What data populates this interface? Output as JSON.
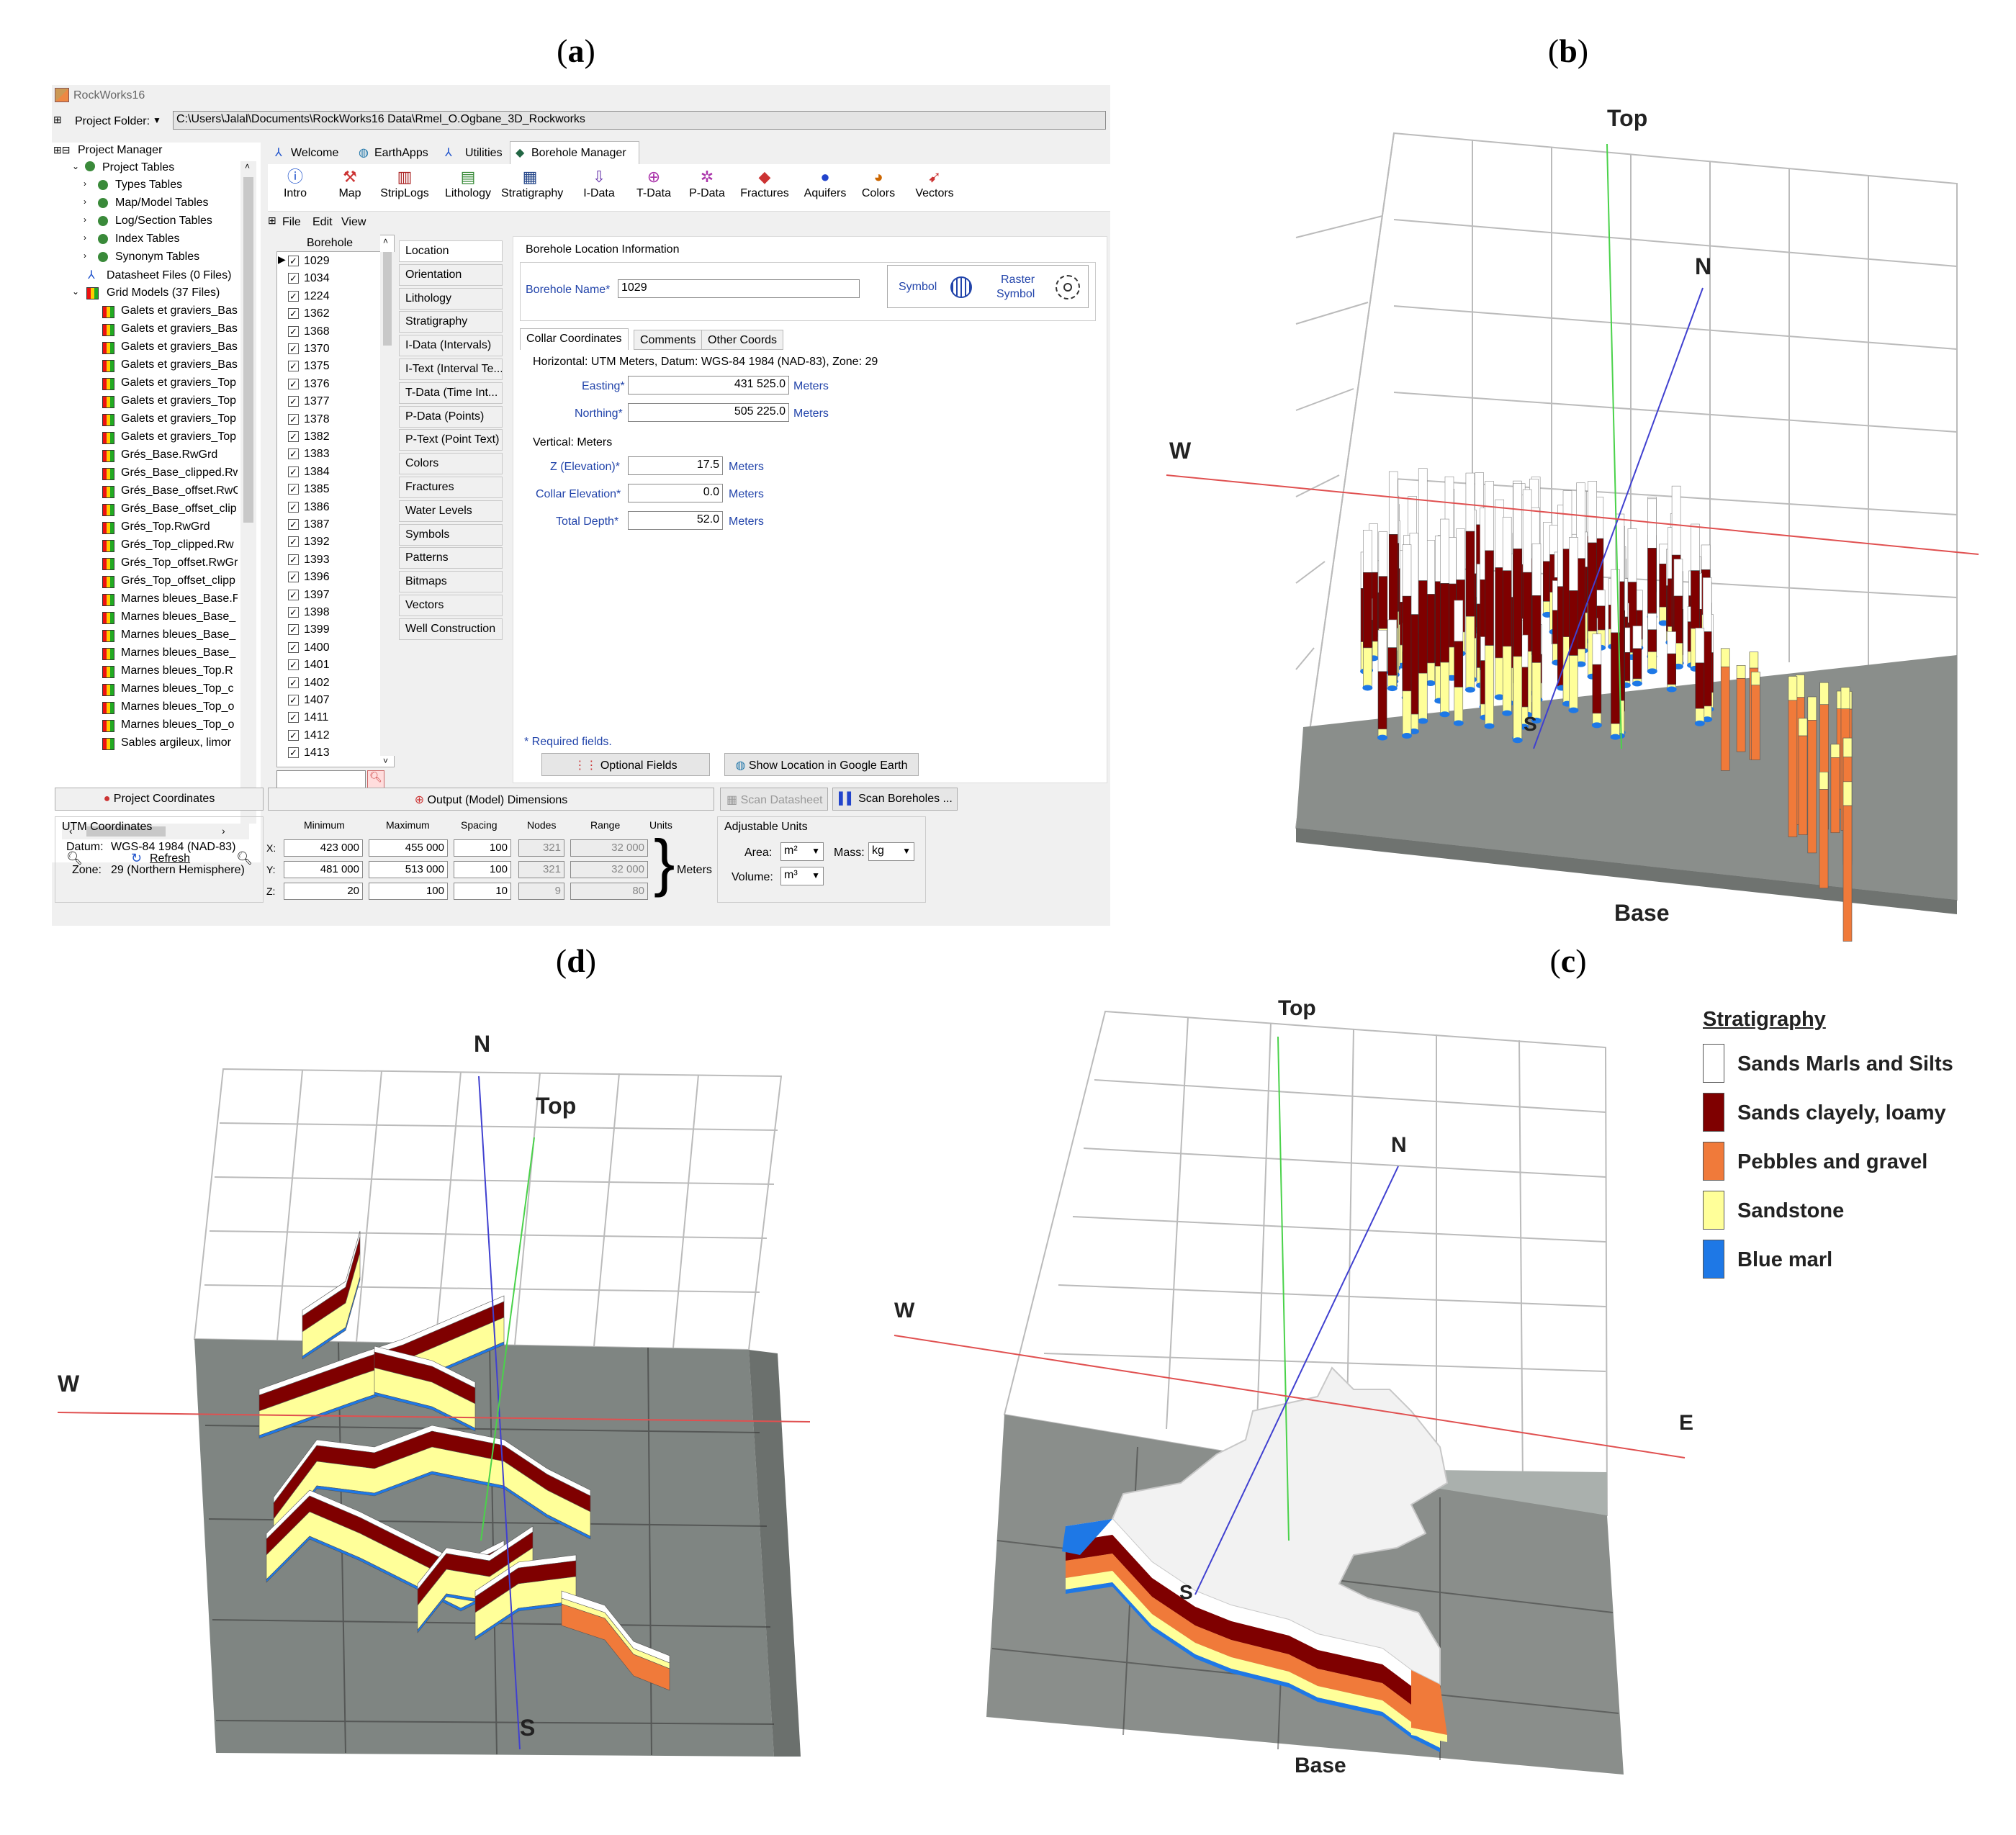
{
  "panel_labels": {
    "a": {
      "open": "(",
      "letter": "a",
      "close": ")"
    },
    "b": {
      "open": "(",
      "letter": "b",
      "close": ")"
    },
    "c": {
      "open": "(",
      "letter": "c",
      "close": ")"
    },
    "d": {
      "open": "(",
      "letter": "d",
      "close": ")"
    }
  },
  "app": {
    "title": "RockWorks16",
    "project_folder_label": "Project Folder:",
    "project_folder_path": "C:\\Users\\Jalal\\Documents\\RockWorks16 Data\\Rmel_O.Ogbane_3D_Rockworks",
    "tabs": [
      "Welcome",
      "EarthApps",
      "Utilities",
      "Borehole Manager"
    ],
    "toolbar": [
      "Intro",
      "Map",
      "StripLogs",
      "Lithology",
      "Stratigraphy",
      "I-Data",
      "T-Data",
      "P-Data",
      "Fractures",
      "Aquifers",
      "Colors",
      "Vectors"
    ],
    "menu": [
      "File",
      "Edit",
      "View"
    ],
    "tree": {
      "root": "Project Manager",
      "project_tables": "Project Tables",
      "tables": [
        "Types Tables",
        "Map/Model Tables",
        "Log/Section Tables",
        "Index Tables",
        "Synonym Tables"
      ],
      "datasheet_files": "Datasheet Files (0 Files)",
      "grid_models": "Grid Models (37 Files)",
      "grids": [
        "Galets et graviers_Bas",
        "Galets et graviers_Bas",
        "Galets et graviers_Bas",
        "Galets et graviers_Bas",
        "Galets et graviers_Top",
        "Galets et graviers_Top",
        "Galets et graviers_Top",
        "Galets et graviers_Top",
        "Grés_Base.RwGrd",
        "Grés_Base_clipped.Rw",
        "Grés_Base_offset.RwG",
        "Grés_Base_offset_clip",
        "Grés_Top.RwGrd",
        "Grés_Top_clipped.Rw",
        "Grés_Top_offset.RwGr",
        "Grés_Top_offset_clipp",
        "Marnes bleues_Base.F",
        "Marnes bleues_Base_",
        "Marnes bleues_Base_",
        "Marnes bleues_Base_",
        "Marnes bleues_Top.R",
        "Marnes bleues_Top_c",
        "Marnes bleues_Top_o",
        "Marnes bleues_Top_o",
        "Sables argileux, limor"
      ],
      "refresh": "Refresh"
    },
    "borehole_list": {
      "header": "Borehole",
      "items": [
        "1029",
        "1034",
        "1224",
        "1362",
        "1368",
        "1370",
        "1375",
        "1376",
        "1377",
        "1378",
        "1382",
        "1383",
        "1384",
        "1385",
        "1386",
        "1387",
        "1392",
        "1393",
        "1396",
        "1397",
        "1398",
        "1399",
        "1400",
        "1401",
        "1402",
        "1407",
        "1411",
        "1412",
        "1413"
      ]
    },
    "nav_buttons": [
      "Location",
      "Orientation",
      "Lithology",
      "Stratigraphy",
      "I-Data (Intervals)",
      "I-Text (Interval Te...",
      "T-Data (Time Int...",
      "P-Data (Points)",
      "P-Text (Point Text)",
      "Colors",
      "Fractures",
      "Water Levels",
      "Symbols",
      "Patterns",
      "Bitmaps",
      "Vectors",
      "Well Construction"
    ],
    "location": {
      "group_title": "Borehole Location Information",
      "name_label": "Borehole Name*",
      "name_value": "1029",
      "symbol_label": "Symbol",
      "raster_label_1": "Raster",
      "raster_label_2": "Symbol",
      "subtabs": [
        "Collar Coordinates",
        "Comments",
        "Other Coords"
      ],
      "horizontal_label": "Horizontal: UTM Meters, Datum: WGS-84 1984 (NAD-83), Zone: 29",
      "easting_label": "Easting*",
      "easting_value": "431 525.0",
      "northing_label": "Northing*",
      "northing_value": "505 225.0",
      "meters": "Meters",
      "vertical_label": "Vertical: Meters",
      "z_label": "Z (Elevation)*",
      "z_value": "17.5",
      "collar_label": "Collar Elevation*",
      "collar_value": "0.0",
      "depth_label": "Total Depth*",
      "depth_value": "52.0",
      "required": "* Required fields.",
      "optional_btn": "Optional Fields",
      "google_btn": "Show Location in Google Earth"
    },
    "bottom": {
      "project_coords_btn": "Project Coordinates",
      "output_dims_btn": "Output (Model) Dimensions",
      "scan_datasheet_btn": "Scan Datasheet",
      "scan_boreholes_btn": "Scan Boreholes ...",
      "utm_label": "UTM Coordinates",
      "datum_label": "Datum:",
      "datum_value": "WGS-84 1984 (NAD-83)",
      "zone_label": "Zone:",
      "zone_value": "29 (Northern Hemisphere)",
      "headers": [
        "Minimum",
        "Maximum",
        "Spacing",
        "Nodes",
        "Range",
        "Units"
      ],
      "rows": [
        {
          "axis": "X:",
          "min": "423 000",
          "max": "455 000",
          "spacing": "100",
          "nodes": "321",
          "range": "32 000"
        },
        {
          "axis": "Y:",
          "min": "481 000",
          "max": "513 000",
          "spacing": "100",
          "nodes": "321",
          "range": "32 000"
        },
        {
          "axis": "Z:",
          "min": "20",
          "max": "100",
          "spacing": "10",
          "nodes": "9",
          "range": "80"
        }
      ],
      "units_value": "Meters",
      "adjustable_units": "Adjustable Units",
      "area_label": "Area:",
      "area_value": "m²",
      "mass_label": "Mass:",
      "mass_value": "kg",
      "volume_label": "Volume:",
      "volume_value": "m³"
    }
  },
  "views": {
    "b": {
      "top": "Top",
      "n": "N",
      "w": "W",
      "s": "S",
      "base": "Base"
    },
    "d": {
      "n": "N",
      "top": "Top",
      "w": "W",
      "s": "S"
    },
    "c": {
      "top": "Top",
      "n": "N",
      "w": "W",
      "e": "E",
      "s": "S",
      "base": "Base"
    }
  },
  "legend": {
    "title": "Stratigraphy",
    "items": [
      {
        "label": "Sands Marls and Silts",
        "color": "#ffffff"
      },
      {
        "label": "Sands clayely, loamy",
        "color": "#7f0000"
      },
      {
        "label": "Pebbles and gravel",
        "color": "#f07a3a"
      },
      {
        "label": "Sandstone",
        "color": "#ffff99"
      },
      {
        "label": "Blue marl",
        "color": "#1e78e6"
      }
    ]
  }
}
